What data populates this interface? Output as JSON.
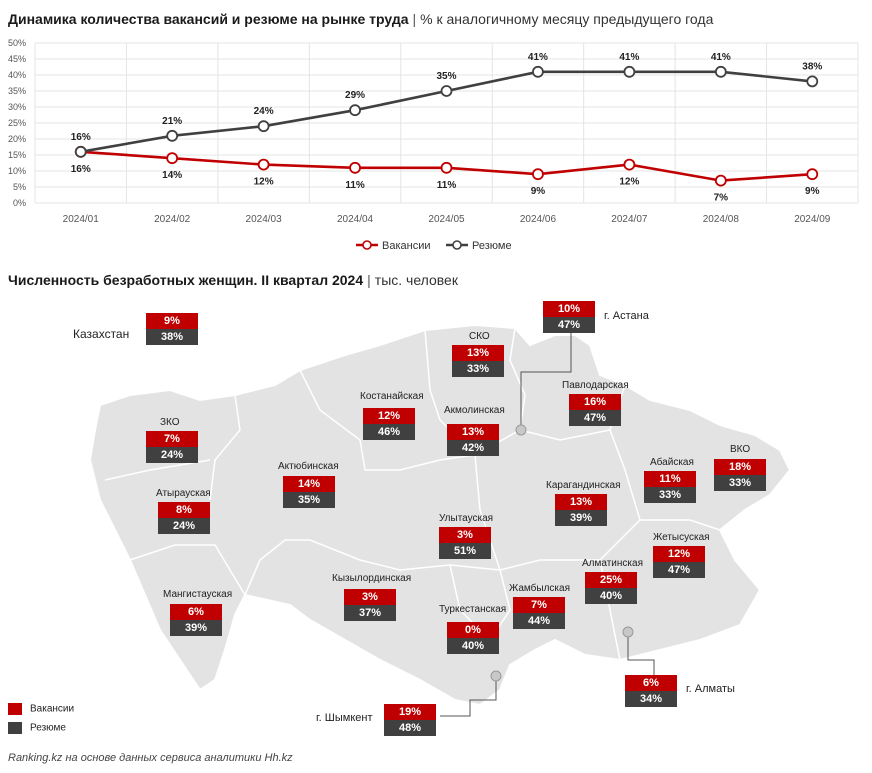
{
  "chart1": {
    "title": "Динамика количества вакансий и резюме на рынке труда",
    "separator": "|",
    "subtitle": "% к аналогичному месяцу предыдущего года"
  },
  "chart_data": [
    {
      "type": "line",
      "x": [
        "2024/01",
        "2024/02",
        "2024/03",
        "2024/04",
        "2024/05",
        "2024/06",
        "2024/07",
        "2024/08",
        "2024/09"
      ],
      "series": [
        {
          "name": "Вакансии",
          "values": [
            16,
            14,
            12,
            11,
            11,
            9,
            12,
            7,
            9
          ],
          "labels": [
            "16%",
            "14%",
            "12%",
            "11%",
            "11%",
            "9%",
            "12%",
            "7%",
            "9%"
          ],
          "color": "#c00000"
        },
        {
          "name": "Резюме",
          "values": [
            16,
            21,
            24,
            29,
            35,
            41,
            41,
            41,
            38
          ],
          "labels": [
            "16%",
            "21%",
            "24%",
            "29%",
            "35%",
            "41%",
            "41%",
            "41%",
            "38%"
          ],
          "color": "#404040"
        }
      ],
      "yticks": [
        "0%",
        "5%",
        "10%",
        "15%",
        "20%",
        "25%",
        "30%",
        "35%",
        "40%",
        "45%",
        "50%"
      ],
      "ylim": [
        0,
        50
      ],
      "grid": true,
      "legend_position": "bottom-center"
    },
    {
      "type": "table",
      "title": "Численность безработных женщин. II квартал 2024",
      "separator": "|",
      "subtitle": "тыс. человек",
      "columns": [
        "Вакансии",
        "Резюме"
      ],
      "rows": [
        {
          "name": "Казахстан",
          "vac": "9%",
          "res": "38%"
        },
        {
          "name": "ЗКО",
          "vac": "7%",
          "res": "24%"
        },
        {
          "name": "Атырауская",
          "vac": "8%",
          "res": "24%"
        },
        {
          "name": "Мангистауская",
          "vac": "6%",
          "res": "39%"
        },
        {
          "name": "Актюбинская",
          "vac": "14%",
          "res": "35%"
        },
        {
          "name": "Костанайская",
          "vac": "12%",
          "res": "46%"
        },
        {
          "name": "СКО",
          "vac": "13%",
          "res": "33%"
        },
        {
          "name": "Акмолинская",
          "vac": "13%",
          "res": "42%"
        },
        {
          "name": "г. Астана",
          "vac": "10%",
          "res": "47%"
        },
        {
          "name": "Павлодарская",
          "vac": "16%",
          "res": "47%"
        },
        {
          "name": "ВКО",
          "vac": "18%",
          "res": "33%"
        },
        {
          "name": "Абайская",
          "vac": "11%",
          "res": "33%"
        },
        {
          "name": "Карагандинская",
          "vac": "13%",
          "res": "39%"
        },
        {
          "name": "Улытауская",
          "vac": "3%",
          "res": "51%"
        },
        {
          "name": "Кызылординская",
          "vac": "3%",
          "res": "37%"
        },
        {
          "name": "Туркестанская",
          "vac": "0%",
          "res": "40%"
        },
        {
          "name": "Жамбылская",
          "vac": "7%",
          "res": "44%"
        },
        {
          "name": "Алматинская",
          "vac": "25%",
          "res": "40%"
        },
        {
          "name": "Жетысуская",
          "vac": "12%",
          "res": "47%"
        },
        {
          "name": "г. Алматы",
          "vac": "6%",
          "res": "34%"
        },
        {
          "name": "г. Шымкент",
          "vac": "19%",
          "res": "48%"
        }
      ]
    }
  ],
  "legend2": {
    "vac": "Вакансии",
    "res": "Резюме"
  },
  "source": "Ranking.kz на основе данных сервиса аналитики Hh.kz",
  "colors": {
    "vac": "#c00000",
    "res": "#404040",
    "map": "#e3e3e3"
  }
}
